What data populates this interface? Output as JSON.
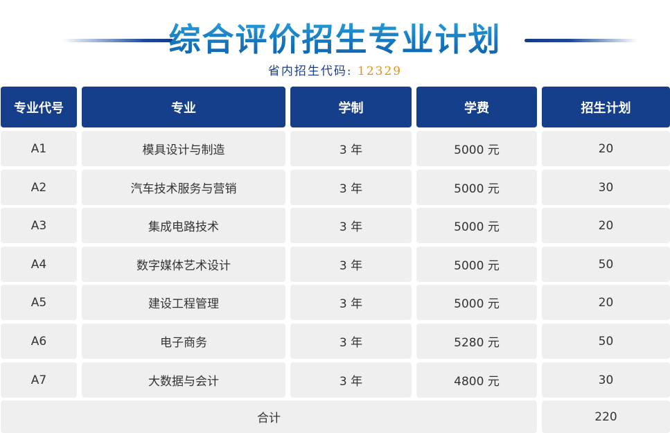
{
  "title": "综合评价招生专业计划",
  "code_label": "省内招生代码:",
  "code_value": "12329",
  "table": {
    "headers": [
      "专业代号",
      "专业",
      "学制",
      "学费",
      "招生计划"
    ],
    "rows": [
      [
        "A1",
        "模具设计与制造",
        "3 年",
        "5000 元",
        "20"
      ],
      [
        "A2",
        "汽车技术服务与营销",
        "3 年",
        "5000 元",
        "30"
      ],
      [
        "A3",
        "集成电路技术",
        "3 年",
        "5000 元",
        "20"
      ],
      [
        "A4",
        "数字媒体艺术设计",
        "3 年",
        "5000 元",
        "50"
      ],
      [
        "A5",
        "建设工程管理",
        "3 年",
        "5000 元",
        "20"
      ],
      [
        "A6",
        "电子商务",
        "3 年",
        "5280 元",
        "50"
      ],
      [
        "A7",
        "大数据与会计",
        "3 年",
        "4800 元",
        "30"
      ]
    ],
    "total_label": "合计",
    "total_value": "220"
  },
  "colors": {
    "header_bg": "#163f8b",
    "cell_bg": "#efefef",
    "title_blue": "#1782c4",
    "code_orange": "#e39314"
  }
}
